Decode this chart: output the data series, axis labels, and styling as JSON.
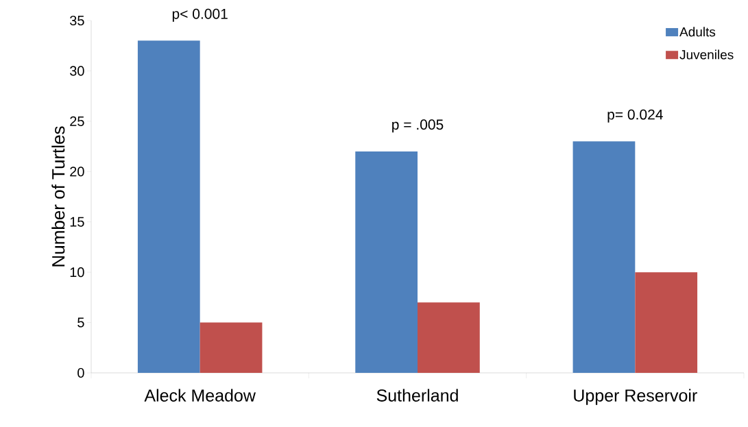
{
  "chart_data": {
    "type": "bar",
    "ylabel": "Number of Turtles",
    "categories": [
      "Aleck Meadow",
      "Sutherland",
      "Upper Reservoir"
    ],
    "series": [
      {
        "name": "Adults",
        "color": "#4f81bd",
        "values": [
          33,
          22,
          23
        ]
      },
      {
        "name": "Juveniles",
        "color": "#c0504d",
        "values": [
          5,
          7,
          10
        ]
      }
    ],
    "ylim": [
      0,
      35
    ],
    "yticks": [
      0,
      5,
      10,
      15,
      20,
      25,
      30,
      35
    ],
    "grid": false,
    "legend": "top right",
    "annotations": [
      "p< 0.001",
      "p = .005",
      "p= 0.024"
    ]
  }
}
